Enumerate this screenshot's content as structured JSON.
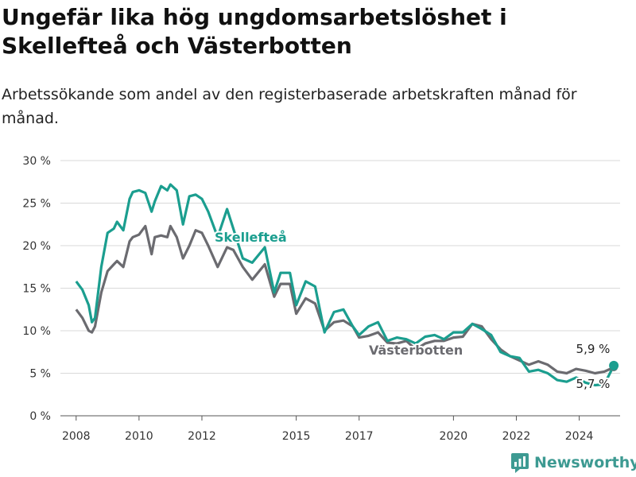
{
  "title": "Ungefär lika hög ungdomsarbetslöshet i Skellefteå och Västerbotten",
  "subtitle": "Arbetssökande som andel av den registerbaserade arbetskraften månad för månad.",
  "brand": "Newsworthy",
  "colors": {
    "skelleftea": "#1b9e8f",
    "vasterbotten": "#6b6b70",
    "grid": "#d9d9d9",
    "brand": "#3d9a92"
  },
  "chart_data": {
    "type": "line",
    "ylim": [
      0,
      30
    ],
    "xlim": [
      2007.5,
      2025.3
    ],
    "y_ticks": [
      0,
      5,
      10,
      15,
      20,
      25,
      30
    ],
    "y_tick_labels": [
      "0 %",
      "5 %",
      "10 %",
      "15 %",
      "20 %",
      "25 %",
      "30 %"
    ],
    "x_ticks": [
      2008,
      2010,
      2012,
      2015,
      2017,
      2020,
      2022,
      2024
    ],
    "x_tick_labels": [
      "2008",
      "2010",
      "2012",
      "2015",
      "2017",
      "2020",
      "2022",
      "2024"
    ],
    "grid": "horizontal",
    "series": [
      {
        "name": "Skellefteå",
        "color": "#1b9e8f",
        "end_label": "5,9 %",
        "x": [
          2008.0,
          2008.2,
          2008.4,
          2008.5,
          2008.6,
          2008.8,
          2009.0,
          2009.2,
          2009.3,
          2009.5,
          2009.7,
          2009.8,
          2010.0,
          2010.2,
          2010.4,
          2010.5,
          2010.7,
          2010.9,
          2011.0,
          2011.2,
          2011.4,
          2011.6,
          2011.8,
          2012.0,
          2012.2,
          2012.5,
          2012.8,
          2013.0,
          2013.3,
          2013.6,
          2014.0,
          2014.3,
          2014.5,
          2014.8,
          2015.0,
          2015.3,
          2015.6,
          2015.9,
          2016.2,
          2016.5,
          2016.8,
          2017.0,
          2017.3,
          2017.6,
          2017.9,
          2018.2,
          2018.5,
          2018.8,
          2019.1,
          2019.4,
          2019.7,
          2020.0,
          2020.3,
          2020.6,
          2020.9,
          2021.2,
          2021.5,
          2021.8,
          2022.1,
          2022.4,
          2022.7,
          2023.0,
          2023.3,
          2023.6,
          2023.9,
          2024.2,
          2024.5,
          2024.8,
          2025.1
        ],
        "y": [
          15.8,
          14.8,
          13.0,
          11.0,
          11.5,
          17.5,
          21.5,
          22.0,
          22.8,
          21.8,
          25.5,
          26.3,
          26.5,
          26.2,
          24.0,
          25.2,
          27.0,
          26.5,
          27.2,
          26.5,
          22.5,
          25.8,
          26.0,
          25.5,
          24.0,
          21.0,
          24.3,
          22.0,
          18.5,
          18.0,
          19.8,
          14.5,
          16.8,
          16.8,
          13.0,
          15.8,
          15.2,
          9.8,
          12.2,
          12.5,
          10.5,
          9.5,
          10.5,
          11.0,
          8.8,
          9.2,
          9.0,
          8.5,
          9.3,
          9.5,
          9.0,
          9.8,
          9.8,
          10.8,
          10.2,
          9.5,
          7.5,
          7.0,
          6.8,
          5.2,
          5.4,
          5.0,
          4.2,
          4.0,
          4.5,
          3.9,
          3.6,
          3.7,
          5.9
        ]
      },
      {
        "name": "Västerbotten",
        "color": "#6b6b70",
        "end_label": "5,7 %",
        "x": [
          2008.0,
          2008.2,
          2008.4,
          2008.5,
          2008.6,
          2008.8,
          2009.0,
          2009.2,
          2009.3,
          2009.5,
          2009.7,
          2009.8,
          2010.0,
          2010.2,
          2010.4,
          2010.5,
          2010.7,
          2010.9,
          2011.0,
          2011.2,
          2011.4,
          2011.6,
          2011.8,
          2012.0,
          2012.2,
          2012.5,
          2012.8,
          2013.0,
          2013.3,
          2013.6,
          2014.0,
          2014.3,
          2014.5,
          2014.8,
          2015.0,
          2015.3,
          2015.6,
          2015.9,
          2016.2,
          2016.5,
          2016.8,
          2017.0,
          2017.3,
          2017.6,
          2017.9,
          2018.2,
          2018.5,
          2018.8,
          2019.1,
          2019.4,
          2019.7,
          2020.0,
          2020.3,
          2020.6,
          2020.9,
          2021.2,
          2021.5,
          2021.8,
          2022.1,
          2022.4,
          2022.7,
          2023.0,
          2023.3,
          2023.6,
          2023.9,
          2024.2,
          2024.5,
          2024.8,
          2025.1
        ],
        "y": [
          12.5,
          11.5,
          10.0,
          9.8,
          10.5,
          14.5,
          17.0,
          17.8,
          18.2,
          17.5,
          20.5,
          21.0,
          21.3,
          22.3,
          19.0,
          21.0,
          21.2,
          21.0,
          22.3,
          21.0,
          18.5,
          20.0,
          21.8,
          21.5,
          20.0,
          17.5,
          19.8,
          19.5,
          17.5,
          16.0,
          17.8,
          14.0,
          15.5,
          15.5,
          12.0,
          13.8,
          13.2,
          10.0,
          11.0,
          11.2,
          10.5,
          9.2,
          9.4,
          9.8,
          8.6,
          8.5,
          8.8,
          7.8,
          8.5,
          8.8,
          8.8,
          9.2,
          9.3,
          10.8,
          10.5,
          9.0,
          7.8,
          7.0,
          6.5,
          6.0,
          6.4,
          6.0,
          5.2,
          5.0,
          5.5,
          5.3,
          5.0,
          5.2,
          5.7
        ]
      }
    ],
    "annotations": [
      {
        "text": "Skellefteå",
        "series": "Skellefteå"
      },
      {
        "text": "Västerbotten",
        "series": "Västerbotten"
      }
    ]
  }
}
